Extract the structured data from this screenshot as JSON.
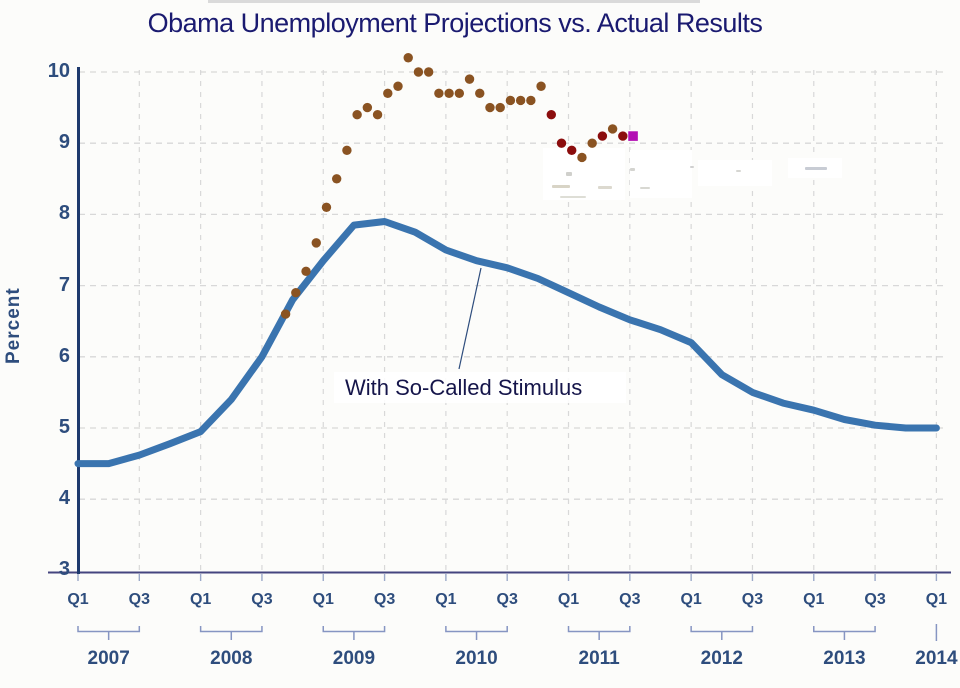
{
  "page": {
    "title": "Obama Unemployment Projections vs. Actual Results"
  },
  "annotation": {
    "label": "With So-Called Stimulus"
  },
  "y_axis": {
    "label": "Percent",
    "ticks": [
      "10",
      "9",
      "8",
      "7",
      "6",
      "5",
      "4",
      "3"
    ]
  },
  "x_axis": {
    "quarter_labels": [
      "Q1",
      "Q3",
      "Q1",
      "Q3",
      "Q1",
      "Q3",
      "Q1",
      "Q3",
      "Q1",
      "Q3",
      "Q1",
      "Q3",
      "Q1",
      "Q3",
      "Q1"
    ],
    "years": [
      "2007",
      "2008",
      "2009",
      "2010",
      "2011",
      "2012",
      "2013",
      "2014"
    ]
  },
  "colors": {
    "title_text": "#1a1a70",
    "axis_text": "#2e4d7d",
    "annotation_text": "#15154a",
    "curve": "#3a74af",
    "brown": "#8a5322",
    "darkred": "#8b0d0d",
    "magenta": "#b30eb3",
    "grid": "#d8d8d8",
    "y_axis_line": "#1e3a6d",
    "x_axis_line": "#45457f",
    "bracket": "#8695c2",
    "quarter_tick": "#9aa8c8"
  },
  "chart_data": {
    "type": "line",
    "title": "Obama Unemployment Projections vs. Actual Results",
    "xlabel": "",
    "ylabel": "Percent",
    "ylim": [
      3,
      10
    ],
    "yticks": [
      10,
      9,
      8,
      7,
      6,
      5,
      4,
      3
    ],
    "grid": "dashed",
    "x_range_quarters": [
      "2007Q1",
      "2014Q1"
    ],
    "series": [
      {
        "name": "With So-Called Stimulus (projection)",
        "type": "line",
        "color_key": "curve",
        "quarters": [
          "2007Q1",
          "2007Q2",
          "2007Q3",
          "2007Q4",
          "2008Q1",
          "2008Q2",
          "2008Q3",
          "2008Q4",
          "2009Q1",
          "2009Q2",
          "2009Q3",
          "2009Q4",
          "2010Q1",
          "2010Q2",
          "2010Q3",
          "2010Q4",
          "2011Q1",
          "2011Q2",
          "2011Q3",
          "2011Q4",
          "2012Q1",
          "2012Q2",
          "2012Q3",
          "2012Q4",
          "2013Q1",
          "2013Q2",
          "2013Q3",
          "2013Q4",
          "2014Q1"
        ],
        "values": [
          4.5,
          4.5,
          4.62,
          4.78,
          4.95,
          5.4,
          6.0,
          6.8,
          7.35,
          7.85,
          7.9,
          7.75,
          7.5,
          7.35,
          7.25,
          7.1,
          6.9,
          6.7,
          6.52,
          6.38,
          6.2,
          5.75,
          5.5,
          5.35,
          5.25,
          5.12,
          5.04,
          5.0,
          5.0
        ]
      },
      {
        "name": "Actual Results",
        "type": "scatter",
        "months": [
          "2008-10",
          "2008-11",
          "2008-12",
          "2009-01",
          "2009-02",
          "2009-03",
          "2009-04",
          "2009-05",
          "2009-06",
          "2009-07",
          "2009-08",
          "2009-09",
          "2009-10",
          "2009-11",
          "2009-12",
          "2010-01",
          "2010-02",
          "2010-03",
          "2010-04",
          "2010-05",
          "2010-06",
          "2010-07",
          "2010-08",
          "2010-09",
          "2010-10",
          "2010-11",
          "2010-12",
          "2011-01",
          "2011-02",
          "2011-03",
          "2011-04",
          "2011-05",
          "2011-06",
          "2011-07",
          "2011-08"
        ],
        "values": [
          6.6,
          6.9,
          7.2,
          7.6,
          8.1,
          8.5,
          8.9,
          9.4,
          9.5,
          9.4,
          9.7,
          9.8,
          10.2,
          10.0,
          10.0,
          9.7,
          9.7,
          9.7,
          9.9,
          9.7,
          9.5,
          9.5,
          9.6,
          9.6,
          9.6,
          9.8,
          9.4,
          9.0,
          8.9,
          8.8,
          9.0,
          9.1,
          9.2,
          9.1,
          9.1
        ],
        "point_colors": [
          "brown",
          "brown",
          "brown",
          "brown",
          "brown",
          "brown",
          "brown",
          "brown",
          "brown",
          "brown",
          "brown",
          "brown",
          "brown",
          "brown",
          "brown",
          "brown",
          "brown",
          "brown",
          "brown",
          "brown",
          "brown",
          "brown",
          "brown",
          "brown",
          "brown",
          "brown",
          "darkred",
          "darkred",
          "darkred",
          "brown",
          "brown",
          "darkred",
          "brown",
          "darkred",
          "magenta"
        ]
      }
    ]
  }
}
